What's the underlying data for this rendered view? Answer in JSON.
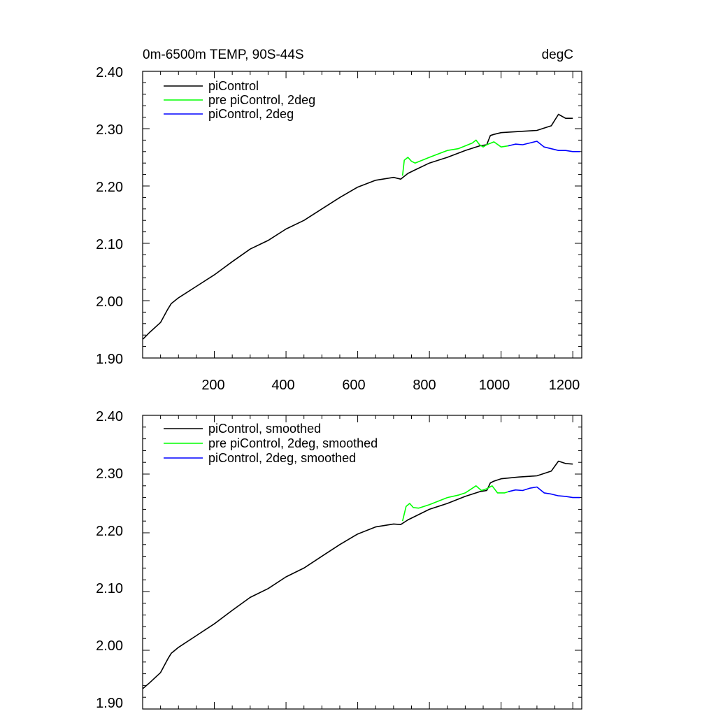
{
  "chart_data": [
    {
      "type": "line",
      "title": "0m-6500m TEMP, 90S-44S",
      "units": "degC",
      "xlim": [
        0,
        1225
      ],
      "ylim": [
        1.9,
        2.4
      ],
      "x_ticks": [
        200,
        400,
        600,
        800,
        1000,
        1200
      ],
      "x_tick_labels": [
        "200",
        "400",
        "600",
        "800",
        "1000",
        "1200"
      ],
      "y_ticks": [
        1.9,
        2.0,
        2.1,
        2.2,
        2.3,
        2.4
      ],
      "y_tick_labels": [
        "1.90",
        "2.00",
        "2.10",
        "2.20",
        "2.30",
        "2.40"
      ],
      "legend": [
        "piControl",
        "pre piControl, 2deg",
        "piControl, 2deg"
      ],
      "series": [
        {
          "name": "piControl",
          "color": "#000000",
          "x": [
            1,
            20,
            50,
            70,
            80,
            100,
            150,
            200,
            250,
            300,
            350,
            400,
            450,
            500,
            550,
            600,
            650,
            700,
            720,
            740,
            760,
            800,
            850,
            900,
            940,
            960,
            970,
            980,
            1000,
            1050,
            1100,
            1140,
            1160,
            1180,
            1200
          ],
          "y": [
            1.933,
            1.945,
            1.962,
            1.985,
            1.995,
            2.005,
            2.025,
            2.045,
            2.068,
            2.09,
            2.105,
            2.125,
            2.14,
            2.16,
            2.18,
            2.198,
            2.21,
            2.215,
            2.212,
            2.222,
            2.228,
            2.24,
            2.25,
            2.262,
            2.27,
            2.272,
            2.288,
            2.29,
            2.293,
            2.295,
            2.297,
            2.305,
            2.325,
            2.318,
            2.318
          ]
        },
        {
          "name": "pre piControl, 2deg",
          "color": "#00ff00",
          "x": [
            725,
            730,
            740,
            750,
            760,
            780,
            800,
            850,
            880,
            900,
            920,
            930,
            940,
            950,
            960,
            980,
            1000,
            1020
          ],
          "y": [
            2.218,
            2.245,
            2.25,
            2.243,
            2.24,
            2.245,
            2.25,
            2.262,
            2.265,
            2.27,
            2.275,
            2.28,
            2.272,
            2.268,
            2.272,
            2.277,
            2.268,
            2.27
          ]
        },
        {
          "name": "piControl, 2deg",
          "color": "#0000ff",
          "x": [
            1020,
            1040,
            1060,
            1080,
            1100,
            1120,
            1140,
            1160,
            1180,
            1200,
            1220
          ],
          "y": [
            2.27,
            2.273,
            2.272,
            2.275,
            2.278,
            2.268,
            2.265,
            2.262,
            2.262,
            2.26,
            2.26
          ]
        }
      ]
    },
    {
      "type": "line",
      "title": "",
      "units": "",
      "xlim": [
        0,
        1225
      ],
      "ylim": [
        1.9,
        2.4
      ],
      "x_ticks": [
        200,
        400,
        600,
        800,
        1000,
        1200
      ],
      "y_ticks": [
        1.9,
        2.0,
        2.1,
        2.2,
        2.3,
        2.4
      ],
      "y_tick_labels": [
        "1.90",
        "2.00",
        "2.10",
        "2.20",
        "2.30",
        "2.40"
      ],
      "legend": [
        "piControl, smoothed",
        "pre piControl, 2deg, smoothed",
        "piControl, 2deg, smoothed"
      ],
      "series": [
        {
          "name": "piControl, smoothed",
          "color": "#000000",
          "x": [
            1,
            20,
            50,
            70,
            80,
            100,
            150,
            200,
            250,
            300,
            350,
            400,
            450,
            500,
            550,
            600,
            650,
            700,
            720,
            740,
            760,
            800,
            850,
            900,
            940,
            960,
            970,
            980,
            1000,
            1050,
            1100,
            1140,
            1160,
            1180,
            1200
          ],
          "y": [
            1.935,
            1.945,
            1.962,
            1.985,
            1.995,
            2.005,
            2.025,
            2.045,
            2.068,
            2.09,
            2.105,
            2.125,
            2.14,
            2.16,
            2.18,
            2.198,
            2.21,
            2.215,
            2.214,
            2.222,
            2.228,
            2.24,
            2.25,
            2.262,
            2.27,
            2.272,
            2.285,
            2.288,
            2.292,
            2.295,
            2.297,
            2.305,
            2.322,
            2.318,
            2.317
          ]
        },
        {
          "name": "pre piControl, 2deg, smoothed",
          "color": "#00ff00",
          "x": [
            725,
            735,
            745,
            755,
            770,
            800,
            850,
            880,
            900,
            930,
            945,
            960,
            975,
            990,
            1010,
            1020
          ],
          "y": [
            2.22,
            2.245,
            2.25,
            2.243,
            2.242,
            2.248,
            2.26,
            2.264,
            2.268,
            2.28,
            2.272,
            2.275,
            2.28,
            2.268,
            2.268,
            2.27
          ]
        },
        {
          "name": "piControl, 2deg, smoothed",
          "color": "#0000ff",
          "x": [
            1020,
            1040,
            1060,
            1080,
            1100,
            1120,
            1140,
            1160,
            1180,
            1200,
            1220
          ],
          "y": [
            2.27,
            2.273,
            2.272,
            2.276,
            2.278,
            2.268,
            2.266,
            2.263,
            2.262,
            2.26,
            2.26
          ]
        }
      ]
    }
  ]
}
